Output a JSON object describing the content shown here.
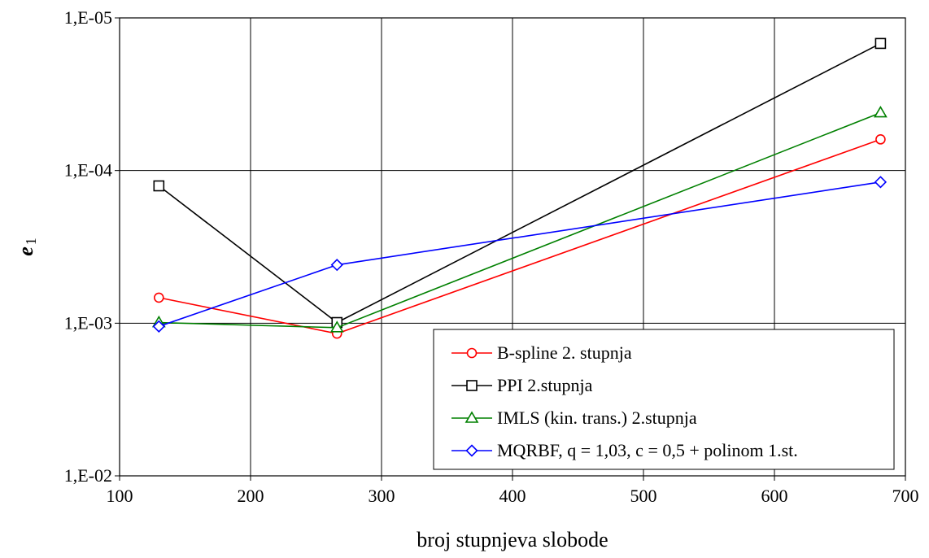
{
  "chart_data": {
    "type": "line",
    "xlabel": "broj stupnjeva slobode",
    "ylabel": "e",
    "ylabel_subscript": "1",
    "xlim": [
      100,
      700
    ],
    "x_ticks": [
      "100",
      "200",
      "300",
      "400",
      "500",
      "600",
      "700"
    ],
    "y_scale": "log",
    "y_inverted": true,
    "ylim": [
      1e-05,
      0.01
    ],
    "y_ticks": [
      "1,E-05",
      "1,E-04",
      "1,E-03",
      "1,E-02"
    ],
    "grid": true,
    "legend_position": "bottom-right",
    "series": [
      {
        "name": "B-spline 2. stupnja",
        "color": "#ff0000",
        "marker": "circle",
        "x": [
          130,
          266,
          681
        ],
        "y": [
          0.00068,
          0.00117,
          6.25e-05
        ]
      },
      {
        "name": "PPI 2.stupnja",
        "color": "#000000",
        "marker": "square",
        "x": [
          130,
          266,
          681
        ],
        "y": [
          0.000126,
          0.00099,
          1.47e-05
        ]
      },
      {
        "name": "IMLS (kin. trans.) 2.stupnja",
        "color": "#008000",
        "marker": "triangle",
        "x": [
          130,
          266,
          681
        ],
        "y": [
          0.00099,
          0.00107,
          4.18e-05
        ]
      },
      {
        "name": "MQRBF, q = 1,03,  c = 0,5 + polinom 1.st.",
        "color": "#0000ff",
        "marker": "diamond",
        "x": [
          130,
          266,
          681
        ],
        "y": [
          0.00105,
          0.000415,
          0.000119
        ]
      }
    ]
  }
}
